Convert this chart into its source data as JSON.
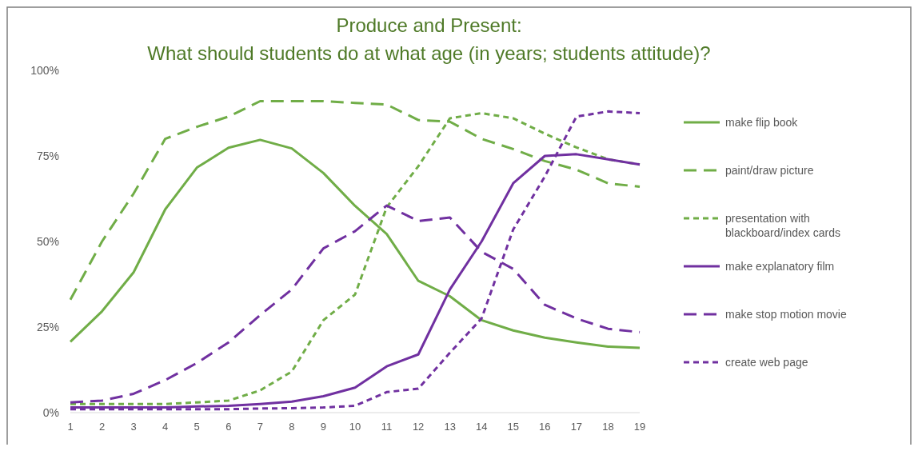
{
  "chart_data": {
    "type": "line",
    "title": "Produce and Present:",
    "subtitle": "What should students do at what age (in years; students attitude)?",
    "x": [
      1,
      2,
      3,
      4,
      5,
      6,
      7,
      8,
      9,
      10,
      11,
      12,
      13,
      14,
      15,
      16,
      17,
      18,
      19
    ],
    "xlim": [
      1,
      19
    ],
    "xticks": [
      1,
      2,
      3,
      4,
      5,
      6,
      7,
      8,
      9,
      10,
      11,
      12,
      13,
      14,
      15,
      16,
      17,
      18,
      19
    ],
    "ylim": [
      0,
      100
    ],
    "yticks": [
      {
        "value": 0,
        "label": "0%"
      },
      {
        "value": 25,
        "label": "25%"
      },
      {
        "value": 50,
        "label": "50%"
      },
      {
        "value": 75,
        "label": "75%"
      },
      {
        "value": 100,
        "label": "100%"
      }
    ],
    "grid": false,
    "legend": "right",
    "marker": "none",
    "series": [
      {
        "name": "make flip book",
        "color": "#70ad47",
        "line_style": "solid",
        "values": [
          20.7,
          29.6,
          41,
          59.4,
          71.6,
          77.4,
          79.7,
          77.2,
          70,
          60.4,
          52.2,
          38.5,
          34,
          27,
          24,
          21.9,
          20.5,
          19.3,
          18.9
        ]
      },
      {
        "name": "paint/draw picture",
        "color": "#70ad47",
        "line_style": "dashed",
        "values": [
          33,
          50,
          64,
          80,
          83.5,
          86.5,
          91,
          91,
          91,
          90.5,
          90,
          85.5,
          85,
          80,
          77,
          73.5,
          71,
          67,
          66
        ]
      },
      {
        "name": "presentation with blackboard/index cards",
        "color": "#70ad47",
        "line_style": "dotted",
        "values": [
          2.5,
          2.5,
          2.5,
          2.5,
          3,
          3.5,
          6.5,
          12,
          27,
          34.5,
          60,
          72,
          86,
          87.5,
          86,
          81.5,
          77.5,
          74,
          72.5
        ]
      },
      {
        "name": "make explanatory film",
        "color": "#7030a0",
        "line_style": "solid",
        "values": [
          1.5,
          1.5,
          1.5,
          1.5,
          1.8,
          2,
          2.5,
          3.2,
          4.8,
          7.3,
          13.5,
          17,
          36,
          50,
          67,
          75,
          75.5,
          74,
          72.5
        ]
      },
      {
        "name": "make stop motion movie",
        "color": "#7030a0",
        "line_style": "dashed",
        "values": [
          3,
          3.5,
          5.5,
          9.5,
          14.5,
          20.5,
          28.5,
          36,
          48,
          53,
          60.5,
          56,
          57,
          47,
          42,
          31.5,
          27.5,
          24.5,
          23.5
        ]
      },
      {
        "name": "create web page",
        "color": "#7030a0",
        "line_style": "dotted",
        "values": [
          1,
          1,
          1,
          1,
          1,
          1,
          1.2,
          1.3,
          1.5,
          2,
          6,
          7,
          17.5,
          27.5,
          53.5,
          69,
          86.5,
          88,
          87.5
        ]
      }
    ]
  }
}
